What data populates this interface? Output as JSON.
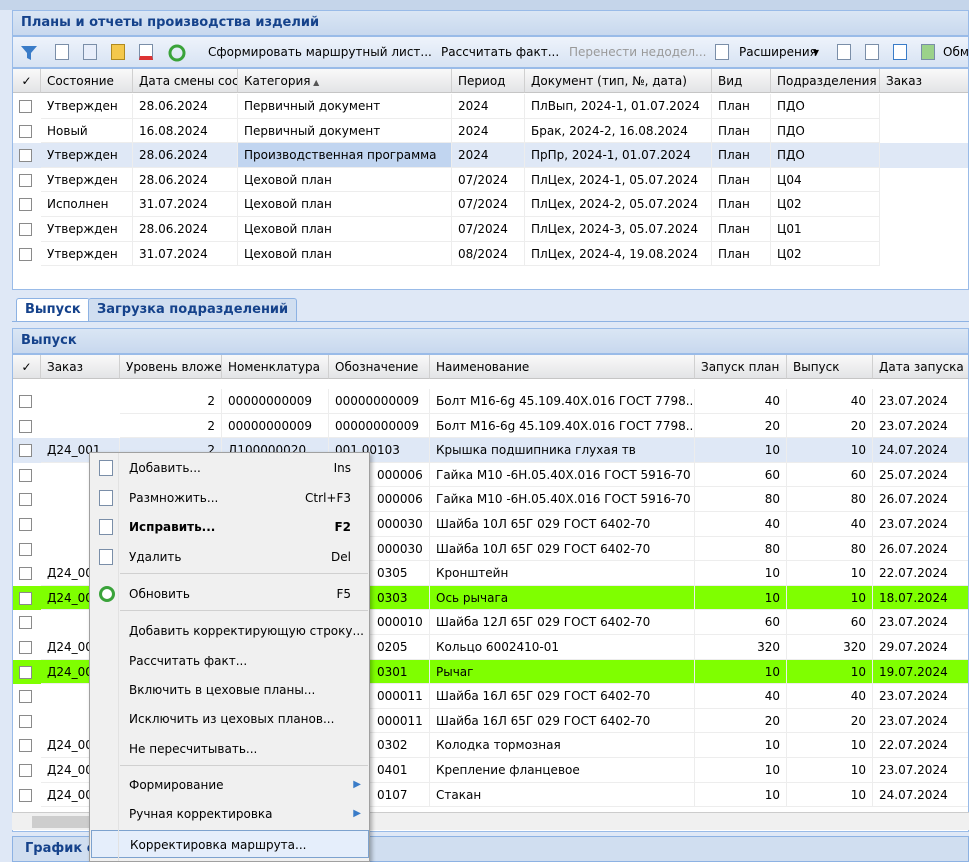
{
  "panel_title": "Планы и отчеты производства изделий",
  "toolbar": {
    "buttons": [
      "Сформировать маршрутный лист...",
      "Рассчитать факт...",
      "Перенести недодел..."
    ],
    "extensions": "Расширения",
    "exchange": "Обме"
  },
  "plans_table": {
    "columns": [
      "✓",
      "Состояние",
      "Дата смены сост",
      "Категория",
      "Период",
      "Документ (тип, №, дата)",
      "Вид",
      "Подразделения",
      "Заказ"
    ],
    "selected_row": 2,
    "rows": [
      [
        "Утвержден",
        "28.06.2024",
        "Первичный документ",
        "2024",
        "ПлВып, 2024-1, 01.07.2024",
        "План",
        "ПДО",
        null
      ],
      [
        "Новый",
        "16.08.2024",
        "Первичный документ",
        "2024",
        "Брак, 2024-2, 16.08.2024",
        "План",
        "ПДО",
        null
      ],
      [
        "Утвержден",
        "28.06.2024",
        "Производственная программа",
        "2024",
        "ПрПр, 2024-1, 01.07.2024",
        "План",
        "ПДО",
        null
      ],
      [
        "Утвержден",
        "28.06.2024",
        "Цеховой план",
        "07/2024",
        "ПлЦех, 2024-1, 05.07.2024",
        "План",
        "Ц04",
        null
      ],
      [
        "Исполнен",
        "31.07.2024",
        "Цеховой план",
        "07/2024",
        "ПлЦех, 2024-2, 05.07.2024",
        "План",
        "Ц02",
        null
      ],
      [
        "Утвержден",
        "28.06.2024",
        "Цеховой план",
        "07/2024",
        "ПлЦех, 2024-3, 05.07.2024",
        "План",
        "Ц01",
        null
      ],
      [
        "Утвержден",
        "31.07.2024",
        "Цеховой план",
        "08/2024",
        "ПлЦех, 2024-4, 19.08.2024",
        "План",
        "Ц02",
        null
      ]
    ]
  },
  "tabs": [
    "Выпуск",
    "Загрузка подразделений"
  ],
  "section_title": "Выпуск",
  "output_table": {
    "columns": [
      "✓",
      "Заказ",
      "Уровень вложен",
      "Номенклатура",
      "Обозначение",
      "Наименование",
      "Запуск план",
      "Выпуск",
      "Дата запуска"
    ],
    "selected_row": 2,
    "highlighted_rows": [
      8,
      11
    ],
    "rows": [
      [
        null,
        "2",
        "00000000009",
        "00000000009",
        "Болт М16-6g 45.109.40Х.016 ГОСТ 7798...",
        "40",
        "40",
        "23.07.2024"
      ],
      [
        null,
        "2",
        "00000000009",
        "00000000009",
        "Болт М16-6g 45.109.40Х.016 ГОСТ 7798...",
        "20",
        "20",
        "23.07.2024"
      ],
      [
        "Д24_001",
        "2",
        "Д100000020",
        "001.00103",
        "Крышка подшипника глухая тв",
        "10",
        "10",
        "24.07.2024"
      ],
      [
        null,
        null,
        null,
        "000006",
        "Гайка М10 -6Н.05.40Х.016 ГОСТ 5916-70",
        "60",
        "60",
        "25.07.2024"
      ],
      [
        null,
        null,
        null,
        "000006",
        "Гайка М10 -6Н.05.40Х.016 ГОСТ 5916-70",
        "80",
        "80",
        "26.07.2024"
      ],
      [
        null,
        null,
        null,
        "000030",
        "Шайба 10Л 65Г 029 ГОСТ 6402-70",
        "40",
        "40",
        "23.07.2024"
      ],
      [
        null,
        null,
        null,
        "000030",
        "Шайба 10Л 65Г 029 ГОСТ 6402-70",
        "80",
        "80",
        "26.07.2024"
      ],
      [
        "Д24_00",
        null,
        null,
        "0305",
        "Кронштейн",
        "10",
        "10",
        "22.07.2024"
      ],
      [
        "Д24_00",
        null,
        null,
        "0303",
        "Ось рычага",
        "10",
        "10",
        "18.07.2024"
      ],
      [
        null,
        null,
        null,
        "000010",
        "Шайба 12Л 65Г 029 ГОСТ 6402-70",
        "60",
        "60",
        "23.07.2024"
      ],
      [
        "Д24_00",
        null,
        null,
        "0205",
        "Кольцо 6002410-01",
        "320",
        "320",
        "29.07.2024"
      ],
      [
        "Д24_00",
        null,
        null,
        "0301",
        "Рычаг",
        "10",
        "10",
        "19.07.2024"
      ],
      [
        null,
        null,
        null,
        "000011",
        "Шайба 16Л 65Г 029 ГОСТ 6402-70",
        "40",
        "40",
        "23.07.2024"
      ],
      [
        null,
        null,
        null,
        "000011",
        "Шайба 16Л 65Г 029 ГОСТ 6402-70",
        "20",
        "20",
        "23.07.2024"
      ],
      [
        "Д24_00",
        null,
        null,
        "0302",
        "Колодка тормозная",
        "10",
        "10",
        "22.07.2024"
      ],
      [
        "Д24_00",
        null,
        null,
        "0401",
        "Крепление фланцевое",
        "10",
        "10",
        "23.07.2024"
      ],
      [
        "Д24_00",
        null,
        null,
        "0107",
        "Стакан",
        "10",
        "10",
        "24.07.2024"
      ]
    ]
  },
  "context_menu": {
    "items": [
      {
        "label": "Добавить...",
        "shortcut": "Ins"
      },
      {
        "label": "Размножить...",
        "shortcut": "Ctrl+F3"
      },
      {
        "label": "Исправить...",
        "shortcut": "F2"
      },
      {
        "label": "Удалить",
        "shortcut": "Del"
      },
      {
        "label": "Обновить",
        "shortcut": "F5"
      },
      {
        "label": "Добавить корректирующую строку..."
      },
      {
        "label": "Рассчитать факт..."
      },
      {
        "label": "Включить в цеховые планы..."
      },
      {
        "label": "Исключить из цеховых планов..."
      },
      {
        "label": "Не пересчитывать..."
      },
      {
        "label": "Формирование"
      },
      {
        "label": "Ручная корректировка"
      },
      {
        "label": "Корректировка маршрута..."
      }
    ]
  },
  "bottom_tab": "График с"
}
